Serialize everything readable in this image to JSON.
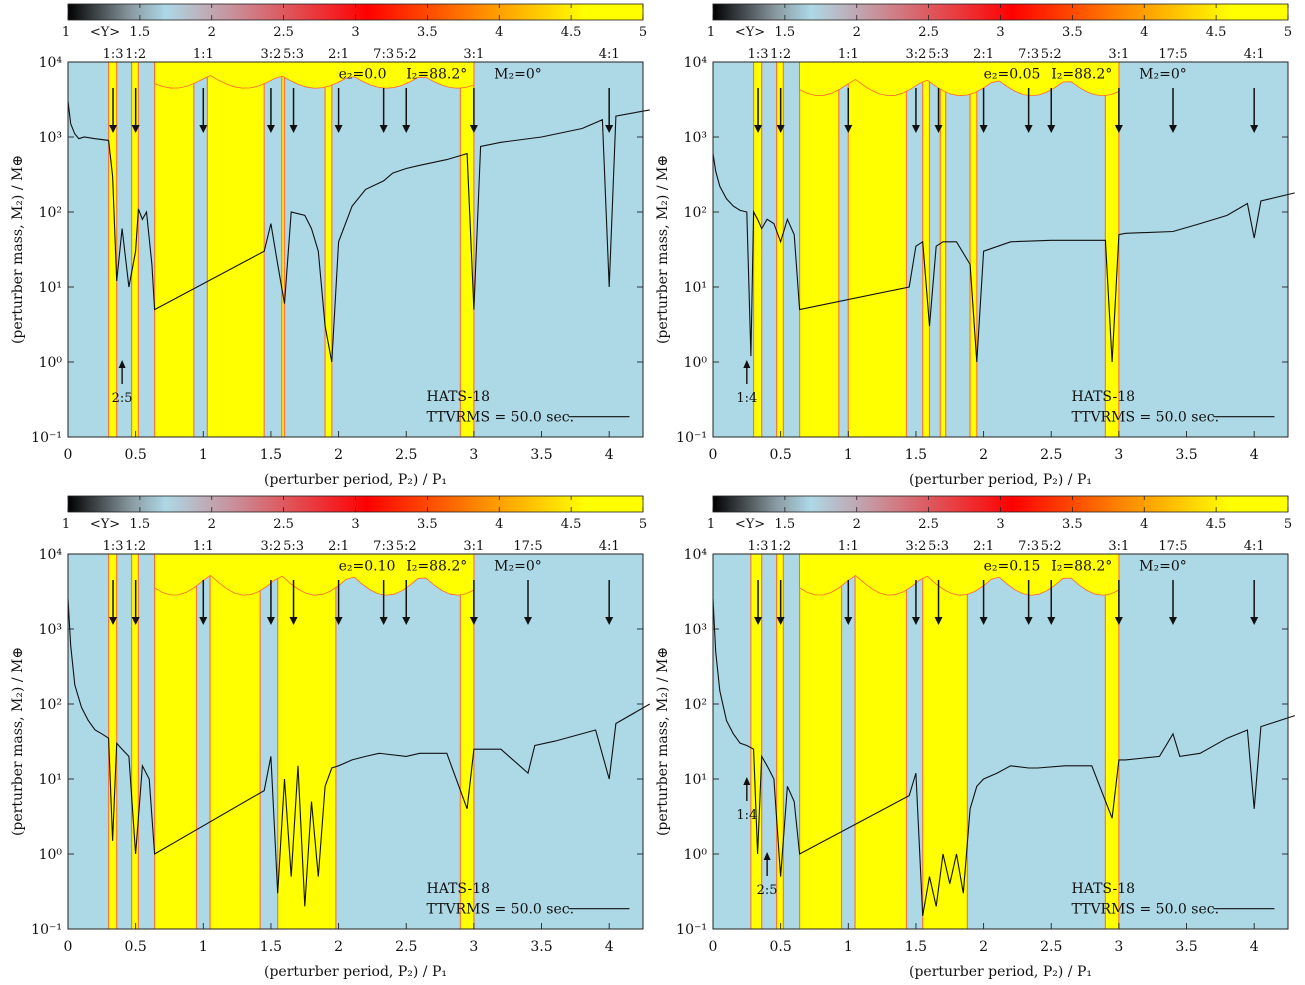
{
  "colors": {
    "stable": "#add8e6",
    "chaotic": "#ffff00",
    "edge": "#ff6633",
    "curve": "#111111",
    "colorbar_stops": [
      "#000000",
      "#8a9aa2",
      "#add8e6",
      "#ff0000",
      "#ff8c00",
      "#ffff00"
    ]
  },
  "colorbar": {
    "label": "<Y>",
    "ticks": [
      "1",
      "1.5",
      "2",
      "2.5",
      "3",
      "3.5",
      "4",
      "4.5",
      "5"
    ]
  },
  "xaxis_label": "(perturber period, P₂) / P₁",
  "yaxis_label": "(perturber mass, M₂) / M⊕",
  "yticks": [
    "10⁻¹",
    "10⁰",
    "10¹",
    "10²",
    "10³",
    "10⁴"
  ],
  "xticks": [
    "0",
    "0.5",
    "1",
    "1.5",
    "2",
    "2.5",
    "3",
    "3.5",
    "4"
  ],
  "legend": {
    "target": "HATS-18",
    "ttv": "TTVRMS = 50.0 sec."
  },
  "chart_data": [
    {
      "type": "heatmap",
      "e2_label": "e₂=0.0",
      "i2_label": "I₂=88.2°",
      "m2_label": "M₂=0°",
      "resonances": [
        {
          "label": "1:3",
          "x": 0.333
        },
        {
          "label": "1:2",
          "x": 0.5
        },
        {
          "label": "1:1",
          "x": 1.0
        },
        {
          "label": "3:2",
          "x": 1.5
        },
        {
          "label": "5:3",
          "x": 1.667
        },
        {
          "label": "2:1",
          "x": 2.0
        },
        {
          "label": "7:3",
          "x": 2.333
        },
        {
          "label": "5:2",
          "x": 2.5
        },
        {
          "label": "3:1",
          "x": 3.0
        },
        {
          "label": "4:1",
          "x": 4.0
        }
      ],
      "arrows_down": [
        0.333,
        0.5,
        1.0,
        1.5,
        1.667,
        2.0,
        2.333,
        2.5,
        3.0,
        4.0
      ],
      "arrows_up": [
        {
          "label": "2:5",
          "x": 0.4,
          "y": 1.0
        }
      ],
      "chaotic_bands": [
        [
          0.3,
          0.36
        ],
        [
          0.47,
          0.52
        ],
        [
          0.64,
          0.93
        ],
        [
          1.03,
          1.45
        ],
        [
          1.58,
          1.6
        ],
        [
          1.9,
          1.95
        ],
        [
          2.9,
          3.0
        ]
      ],
      "ttv_curve": {
        "x": [
          0.0,
          0.02,
          0.05,
          0.08,
          0.12,
          0.2,
          0.3,
          0.33,
          0.36,
          0.4,
          0.45,
          0.5,
          0.52,
          0.55,
          0.58,
          0.62,
          0.64,
          1.45,
          1.5,
          1.55,
          1.6,
          1.65,
          1.7,
          1.75,
          1.8,
          1.85,
          1.9,
          1.95,
          2.0,
          2.1,
          2.2,
          2.333,
          2.4,
          2.5,
          2.6,
          2.8,
          2.95,
          3.0,
          3.05,
          3.2,
          3.5,
          3.8,
          3.95,
          4.0,
          4.05,
          4.3
        ],
        "y": [
          3000,
          1500,
          1100,
          950,
          1000,
          950,
          900,
          300,
          12,
          60,
          10,
          30,
          110,
          80,
          100,
          20,
          5,
          30,
          70,
          20,
          6,
          100,
          95,
          90,
          60,
          30,
          3,
          1,
          40,
          120,
          200,
          260,
          330,
          380,
          420,
          500,
          600,
          5,
          750,
          850,
          1000,
          1300,
          1700,
          10,
          1900,
          2300
        ]
      }
    },
    {
      "type": "heatmap",
      "e2_label": "e₂=0.05",
      "i2_label": "I₂=88.2°",
      "m2_label": "M₂=0°",
      "resonances": [
        {
          "label": "1:3",
          "x": 0.333
        },
        {
          "label": "1:2",
          "x": 0.5
        },
        {
          "label": "1:1",
          "x": 1.0
        },
        {
          "label": "3:2",
          "x": 1.5
        },
        {
          "label": "5:3",
          "x": 1.667
        },
        {
          "label": "2:1",
          "x": 2.0
        },
        {
          "label": "7:3",
          "x": 2.333
        },
        {
          "label": "5:2",
          "x": 2.5
        },
        {
          "label": "3:1",
          "x": 3.0
        },
        {
          "label": "17:5",
          "x": 3.4
        },
        {
          "label": "4:1",
          "x": 4.0
        }
      ],
      "arrows_down": [
        0.333,
        0.5,
        1.0,
        1.5,
        1.667,
        2.0,
        2.333,
        2.5,
        3.0,
        3.4,
        4.0
      ],
      "arrows_up": [
        {
          "label": "1:4",
          "x": 0.25,
          "y": 1.0
        }
      ],
      "chaotic_bands": [
        [
          0.3,
          0.36
        ],
        [
          0.47,
          0.52
        ],
        [
          0.64,
          0.93
        ],
        [
          1.0,
          1.43
        ],
        [
          1.55,
          1.6
        ],
        [
          1.68,
          1.72
        ],
        [
          1.9,
          1.95
        ],
        [
          2.9,
          3.0
        ]
      ],
      "ttv_curve": {
        "x": [
          0.0,
          0.02,
          0.05,
          0.1,
          0.15,
          0.2,
          0.25,
          0.28,
          0.3,
          0.33,
          0.36,
          0.4,
          0.45,
          0.5,
          0.55,
          0.6,
          0.64,
          1.45,
          1.5,
          1.55,
          1.6,
          1.65,
          1.7,
          1.8,
          1.9,
          1.95,
          2.0,
          2.2,
          2.5,
          2.6,
          2.9,
          2.95,
          3.0,
          3.05,
          3.4,
          3.6,
          3.8,
          3.95,
          4.0,
          4.05,
          4.3
        ],
        "y": [
          600,
          350,
          220,
          150,
          120,
          105,
          100,
          1.2,
          100,
          80,
          60,
          80,
          70,
          40,
          80,
          50,
          5,
          10,
          35,
          40,
          3,
          35,
          40,
          40,
          20,
          1,
          30,
          40,
          42,
          42,
          42,
          1,
          50,
          52,
          55,
          70,
          90,
          130,
          45,
          140,
          180
        ]
      }
    },
    {
      "type": "heatmap",
      "e2_label": "e₂=0.10",
      "i2_label": "I₂=88.2°",
      "m2_label": "M₂=0°",
      "resonances": [
        {
          "label": "1:3",
          "x": 0.333
        },
        {
          "label": "1:2",
          "x": 0.5
        },
        {
          "label": "1:1",
          "x": 1.0
        },
        {
          "label": "3:2",
          "x": 1.5
        },
        {
          "label": "5:3",
          "x": 1.667
        },
        {
          "label": "2:1",
          "x": 2.0
        },
        {
          "label": "7:3",
          "x": 2.333
        },
        {
          "label": "5:2",
          "x": 2.5
        },
        {
          "label": "3:1",
          "x": 3.0
        },
        {
          "label": "17:5",
          "x": 3.4
        },
        {
          "label": "4:1",
          "x": 4.0
        }
      ],
      "arrows_down": [
        0.333,
        0.5,
        1.0,
        1.5,
        1.667,
        2.0,
        2.333,
        2.5,
        3.0,
        3.4,
        4.0
      ],
      "arrows_up": [],
      "chaotic_bands": [
        [
          0.3,
          0.36
        ],
        [
          0.47,
          0.52
        ],
        [
          0.64,
          0.95
        ],
        [
          1.05,
          1.42
        ],
        [
          1.55,
          1.98
        ],
        [
          2.9,
          3.0
        ]
      ],
      "ttv_curve": {
        "x": [
          0.0,
          0.02,
          0.05,
          0.1,
          0.15,
          0.2,
          0.25,
          0.3,
          0.33,
          0.36,
          0.4,
          0.45,
          0.5,
          0.55,
          0.6,
          0.64,
          1.45,
          1.5,
          1.55,
          1.6,
          1.65,
          1.7,
          1.75,
          1.8,
          1.85,
          1.9,
          1.95,
          2.0,
          2.1,
          2.2,
          2.3,
          2.5,
          2.6,
          2.8,
          2.95,
          3.0,
          3.05,
          3.2,
          3.4,
          3.45,
          3.6,
          3.9,
          4.0,
          4.05,
          4.3
        ],
        "y": [
          2500,
          600,
          180,
          90,
          60,
          45,
          40,
          35,
          1.5,
          30,
          25,
          20,
          1,
          15,
          10,
          1,
          7,
          20,
          0.3,
          10,
          0.5,
          15,
          0.2,
          5,
          0.5,
          8,
          14,
          15,
          18,
          20,
          22,
          20,
          22,
          22,
          4,
          25,
          25,
          25,
          12,
          28,
          32,
          45,
          10,
          55,
          100
        ]
      }
    },
    {
      "type": "heatmap",
      "e2_label": "e₂=0.15",
      "i2_label": "I₂=88.2°",
      "m2_label": "M₂=0°",
      "resonances": [
        {
          "label": "1:3",
          "x": 0.333
        },
        {
          "label": "1:2",
          "x": 0.5
        },
        {
          "label": "1:1",
          "x": 1.0
        },
        {
          "label": "3:2",
          "x": 1.5
        },
        {
          "label": "5:3",
          "x": 1.667
        },
        {
          "label": "2:1",
          "x": 2.0
        },
        {
          "label": "7:3",
          "x": 2.333
        },
        {
          "label": "5:2",
          "x": 2.5
        },
        {
          "label": "3:1",
          "x": 3.0
        },
        {
          "label": "17:5",
          "x": 3.4
        },
        {
          "label": "4:1",
          "x": 4.0
        }
      ],
      "arrows_down": [
        0.333,
        0.5,
        1.0,
        1.5,
        1.667,
        2.0,
        2.333,
        2.5,
        3.0,
        3.4,
        4.0
      ],
      "arrows_up": [
        {
          "label": "1:4",
          "x": 0.25,
          "y": 10.0
        },
        {
          "label": "2:5",
          "x": 0.4,
          "y": 1.0
        }
      ],
      "chaotic_bands": [
        [
          0.28,
          0.36
        ],
        [
          0.47,
          0.52
        ],
        [
          0.64,
          0.95
        ],
        [
          1.05,
          1.43
        ],
        [
          1.55,
          1.88
        ],
        [
          2.9,
          3.0
        ]
      ],
      "ttv_curve": {
        "x": [
          0.0,
          0.02,
          0.05,
          0.1,
          0.15,
          0.2,
          0.25,
          0.3,
          0.33,
          0.36,
          0.4,
          0.45,
          0.5,
          0.55,
          0.6,
          0.64,
          1.45,
          1.5,
          1.55,
          1.6,
          1.65,
          1.7,
          1.75,
          1.8,
          1.85,
          1.9,
          1.95,
          2.0,
          2.1,
          2.2,
          2.333,
          2.4,
          2.6,
          2.8,
          2.95,
          3.0,
          3.05,
          3.3,
          3.4,
          3.45,
          3.6,
          3.8,
          3.95,
          4.0,
          4.05,
          4.3
        ],
        "y": [
          2500,
          500,
          150,
          60,
          40,
          30,
          28,
          25,
          1,
          20,
          15,
          10,
          0.5,
          8,
          5,
          1,
          6,
          12,
          0.15,
          0.5,
          0.2,
          1,
          0.4,
          1,
          0.3,
          4,
          8,
          10,
          12,
          15,
          14,
          14,
          15,
          15,
          3,
          18,
          18,
          20,
          40,
          20,
          22,
          35,
          45,
          4,
          50,
          70
        ]
      }
    }
  ]
}
